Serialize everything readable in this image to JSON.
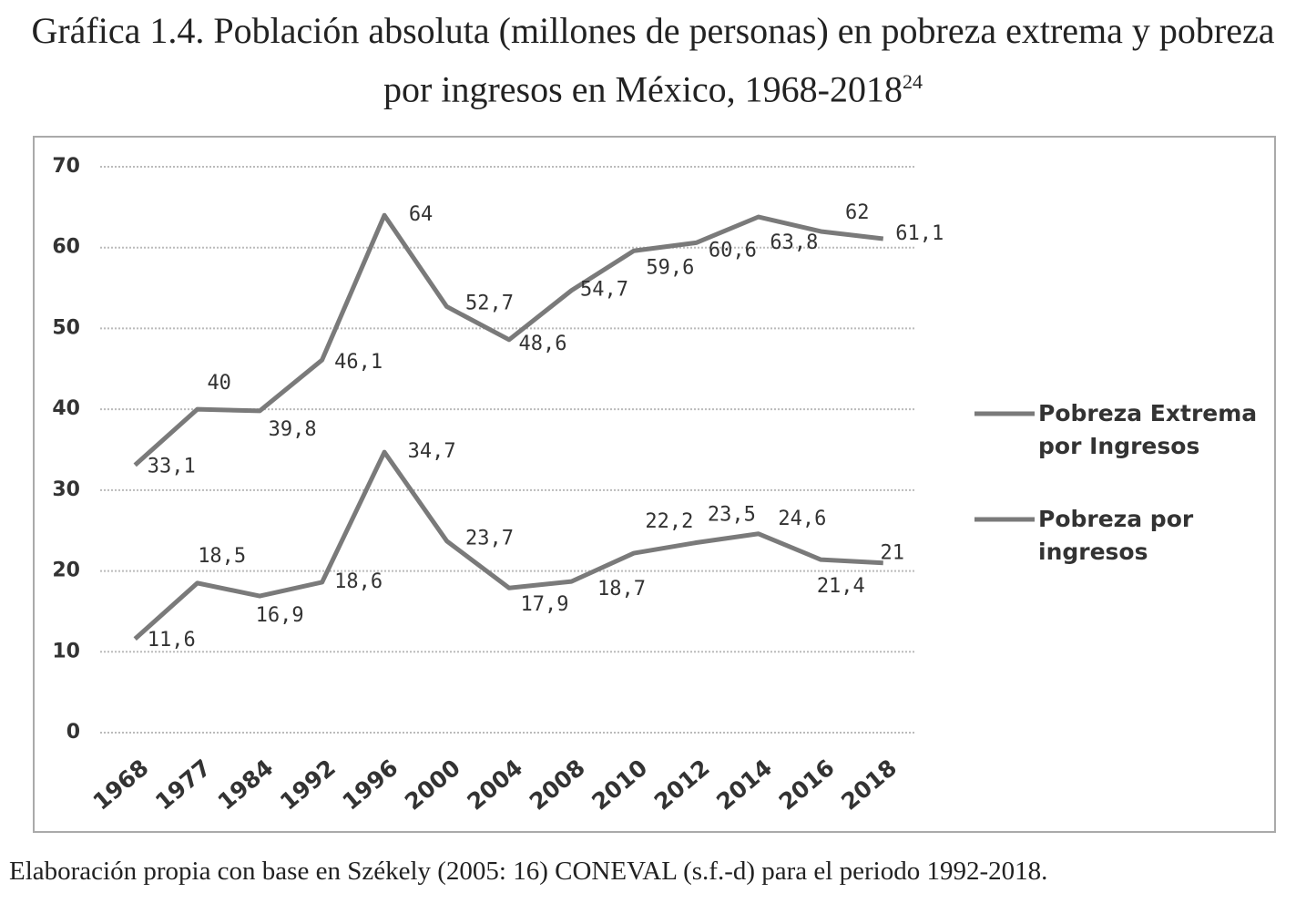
{
  "chart_data": {
    "type": "line",
    "title": "Gráfica 1.4. Población absoluta (millones de personas) en pobreza extrema y pobreza por ingresos en México, 1968-2018",
    "title_note": "24",
    "source": "Elaboración propia con base en Székely (2005: 16) CONEVAL (s.f.-d) para el periodo 1992-2018.",
    "categories": [
      "1968",
      "1977",
      "1984",
      "1992",
      "1996",
      "2000",
      "2004",
      "2008",
      "2010",
      "2012",
      "2014",
      "2016",
      "2018"
    ],
    "series": [
      {
        "name": "Pobreza Extrema por Ingresos",
        "color": "#7a7a7a",
        "values": [
          11.6,
          18.5,
          16.9,
          18.6,
          34.7,
          23.7,
          17.9,
          18.7,
          22.2,
          23.5,
          24.6,
          21.4,
          21
        ],
        "value_labels": [
          "11,6",
          "18,5",
          "16,9",
          "18,6",
          "34,7",
          "23,7",
          "17,9",
          "18,7",
          "22,2",
          "23,5",
          "24,6",
          "21,4",
          "21"
        ]
      },
      {
        "name": "Pobreza por ingresos",
        "color": "#7a7a7a",
        "values": [
          33.1,
          40,
          39.8,
          46.1,
          64,
          52.7,
          48.6,
          54.7,
          59.6,
          60.6,
          63.8,
          62,
          61.1
        ],
        "value_labels": [
          "33,1",
          "40",
          "39,8",
          "46,1",
          "64",
          "52,7",
          "48,6",
          "54,7",
          "59,6",
          "60,6",
          "63,8",
          "62",
          "61,1"
        ]
      }
    ],
    "ylim": [
      0,
      70
    ],
    "yticks": [
      0,
      10,
      20,
      30,
      40,
      50,
      60,
      70
    ],
    "grid": true,
    "legend": "right"
  }
}
